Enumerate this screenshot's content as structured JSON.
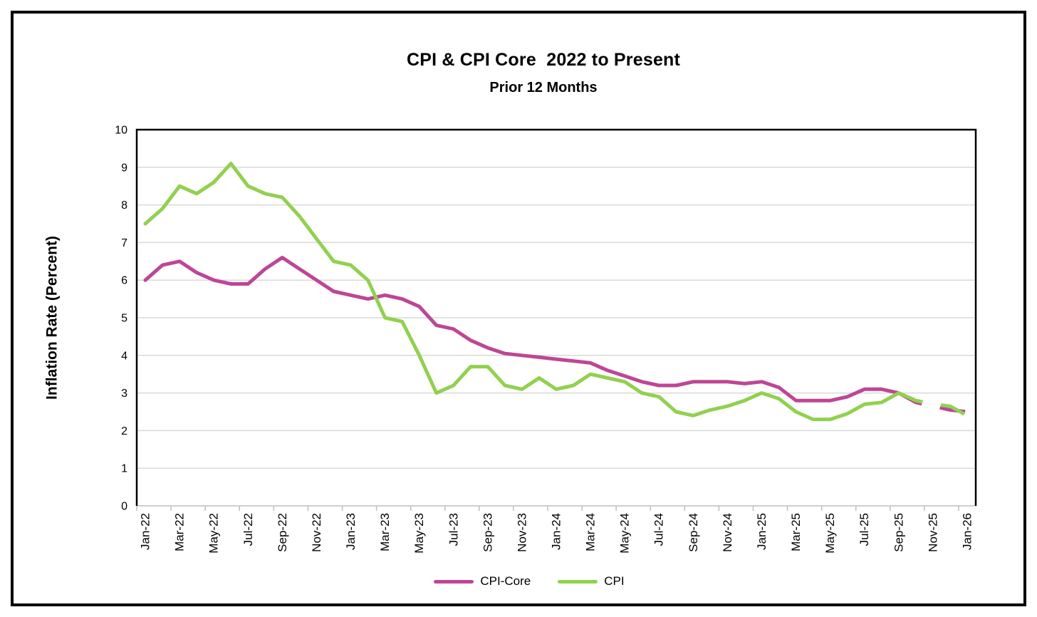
{
  "chart_data": {
    "type": "line",
    "title": "CPI & CPI Core  2022 to Present",
    "subtitle": "Prior 12 Months",
    "xlabel": "",
    "ylabel": "Inflation Rate (Percent)",
    "ylim": [
      0,
      10
    ],
    "ytick_interval": 1,
    "grid": "horizontal",
    "legend_position": "bottom",
    "dashed_from_index": 44,
    "colors": {
      "grid": "#D9D9D9",
      "axis": "#BFBFBF",
      "plot_border": "#000000",
      "text": "#000000"
    },
    "categories": [
      "Jan-22",
      "Feb-22",
      "Mar-22",
      "Apr-22",
      "May-22",
      "Jun-22",
      "Jul-22",
      "Aug-22",
      "Sep-22",
      "Oct-22",
      "Nov-22",
      "Dec-22",
      "Jan-23",
      "Feb-23",
      "Mar-23",
      "Apr-23",
      "May-23",
      "Jun-23",
      "Jul-23",
      "Aug-23",
      "Sep-23",
      "Oct-23",
      "Nov-23",
      "Dec-23",
      "Jan-24",
      "Feb-24",
      "Mar-24",
      "Apr-24",
      "May-24",
      "Jun-24",
      "Jul-24",
      "Aug-24",
      "Sep-24",
      "Oct-24",
      "Nov-24",
      "Dec-24",
      "Jan-25",
      "Feb-25",
      "Mar-25",
      "Apr-25",
      "May-25",
      "Jun-25",
      "Jul-25",
      "Aug-25",
      "Sep-25",
      "Oct-25",
      "Nov-25",
      "Dec-25",
      "Jan-26"
    ],
    "x_tick_labels": [
      "Jan-22",
      "Mar-22",
      "May-22",
      "Jul-22",
      "Sep-22",
      "Nov-22",
      "Jan-23",
      "Mar-23",
      "May-23",
      "Jul-23",
      "Sep-23",
      "Nov-23",
      "Jan-24",
      "Mar-24",
      "May-24",
      "Jul-24",
      "Sep-24",
      "Nov-24",
      "Jan-25",
      "Mar-25",
      "May-25",
      "Jul-25",
      "Sep-25",
      "Nov-25",
      "Jan-26"
    ],
    "series": [
      {
        "name": "CPI-Core",
        "color": "#BE4696",
        "values": [
          6.0,
          6.4,
          6.5,
          6.2,
          6.0,
          5.9,
          5.9,
          6.3,
          6.6,
          6.3,
          6.0,
          5.7,
          5.6,
          5.5,
          5.6,
          5.5,
          5.3,
          4.8,
          4.7,
          4.4,
          4.2,
          4.05,
          4.0,
          3.95,
          3.9,
          3.85,
          3.8,
          3.6,
          3.45,
          3.3,
          3.2,
          3.2,
          3.3,
          3.3,
          3.3,
          3.25,
          3.3,
          3.15,
          2.8,
          2.8,
          2.8,
          2.9,
          3.1,
          3.1,
          3.0,
          2.75,
          2.65,
          2.55,
          2.5
        ]
      },
      {
        "name": "CPI",
        "color": "#92D050",
        "values": [
          7.5,
          7.9,
          8.5,
          8.3,
          8.6,
          9.1,
          8.5,
          8.3,
          8.2,
          7.7,
          7.1,
          6.5,
          6.4,
          6.0,
          5.0,
          4.9,
          4.0,
          3.0,
          3.2,
          3.7,
          3.7,
          3.2,
          3.1,
          3.4,
          3.1,
          3.2,
          3.5,
          3.4,
          3.3,
          3.0,
          2.9,
          2.5,
          2.4,
          2.55,
          2.65,
          2.8,
          3.0,
          2.85,
          2.5,
          2.3,
          2.3,
          2.45,
          2.7,
          2.75,
          3.0,
          2.8,
          2.7,
          2.65,
          2.4
        ]
      }
    ],
    "y_tick_labels": [
      "0",
      "1",
      "2",
      "3",
      "4",
      "5",
      "6",
      "7",
      "8",
      "9",
      "10"
    ]
  }
}
